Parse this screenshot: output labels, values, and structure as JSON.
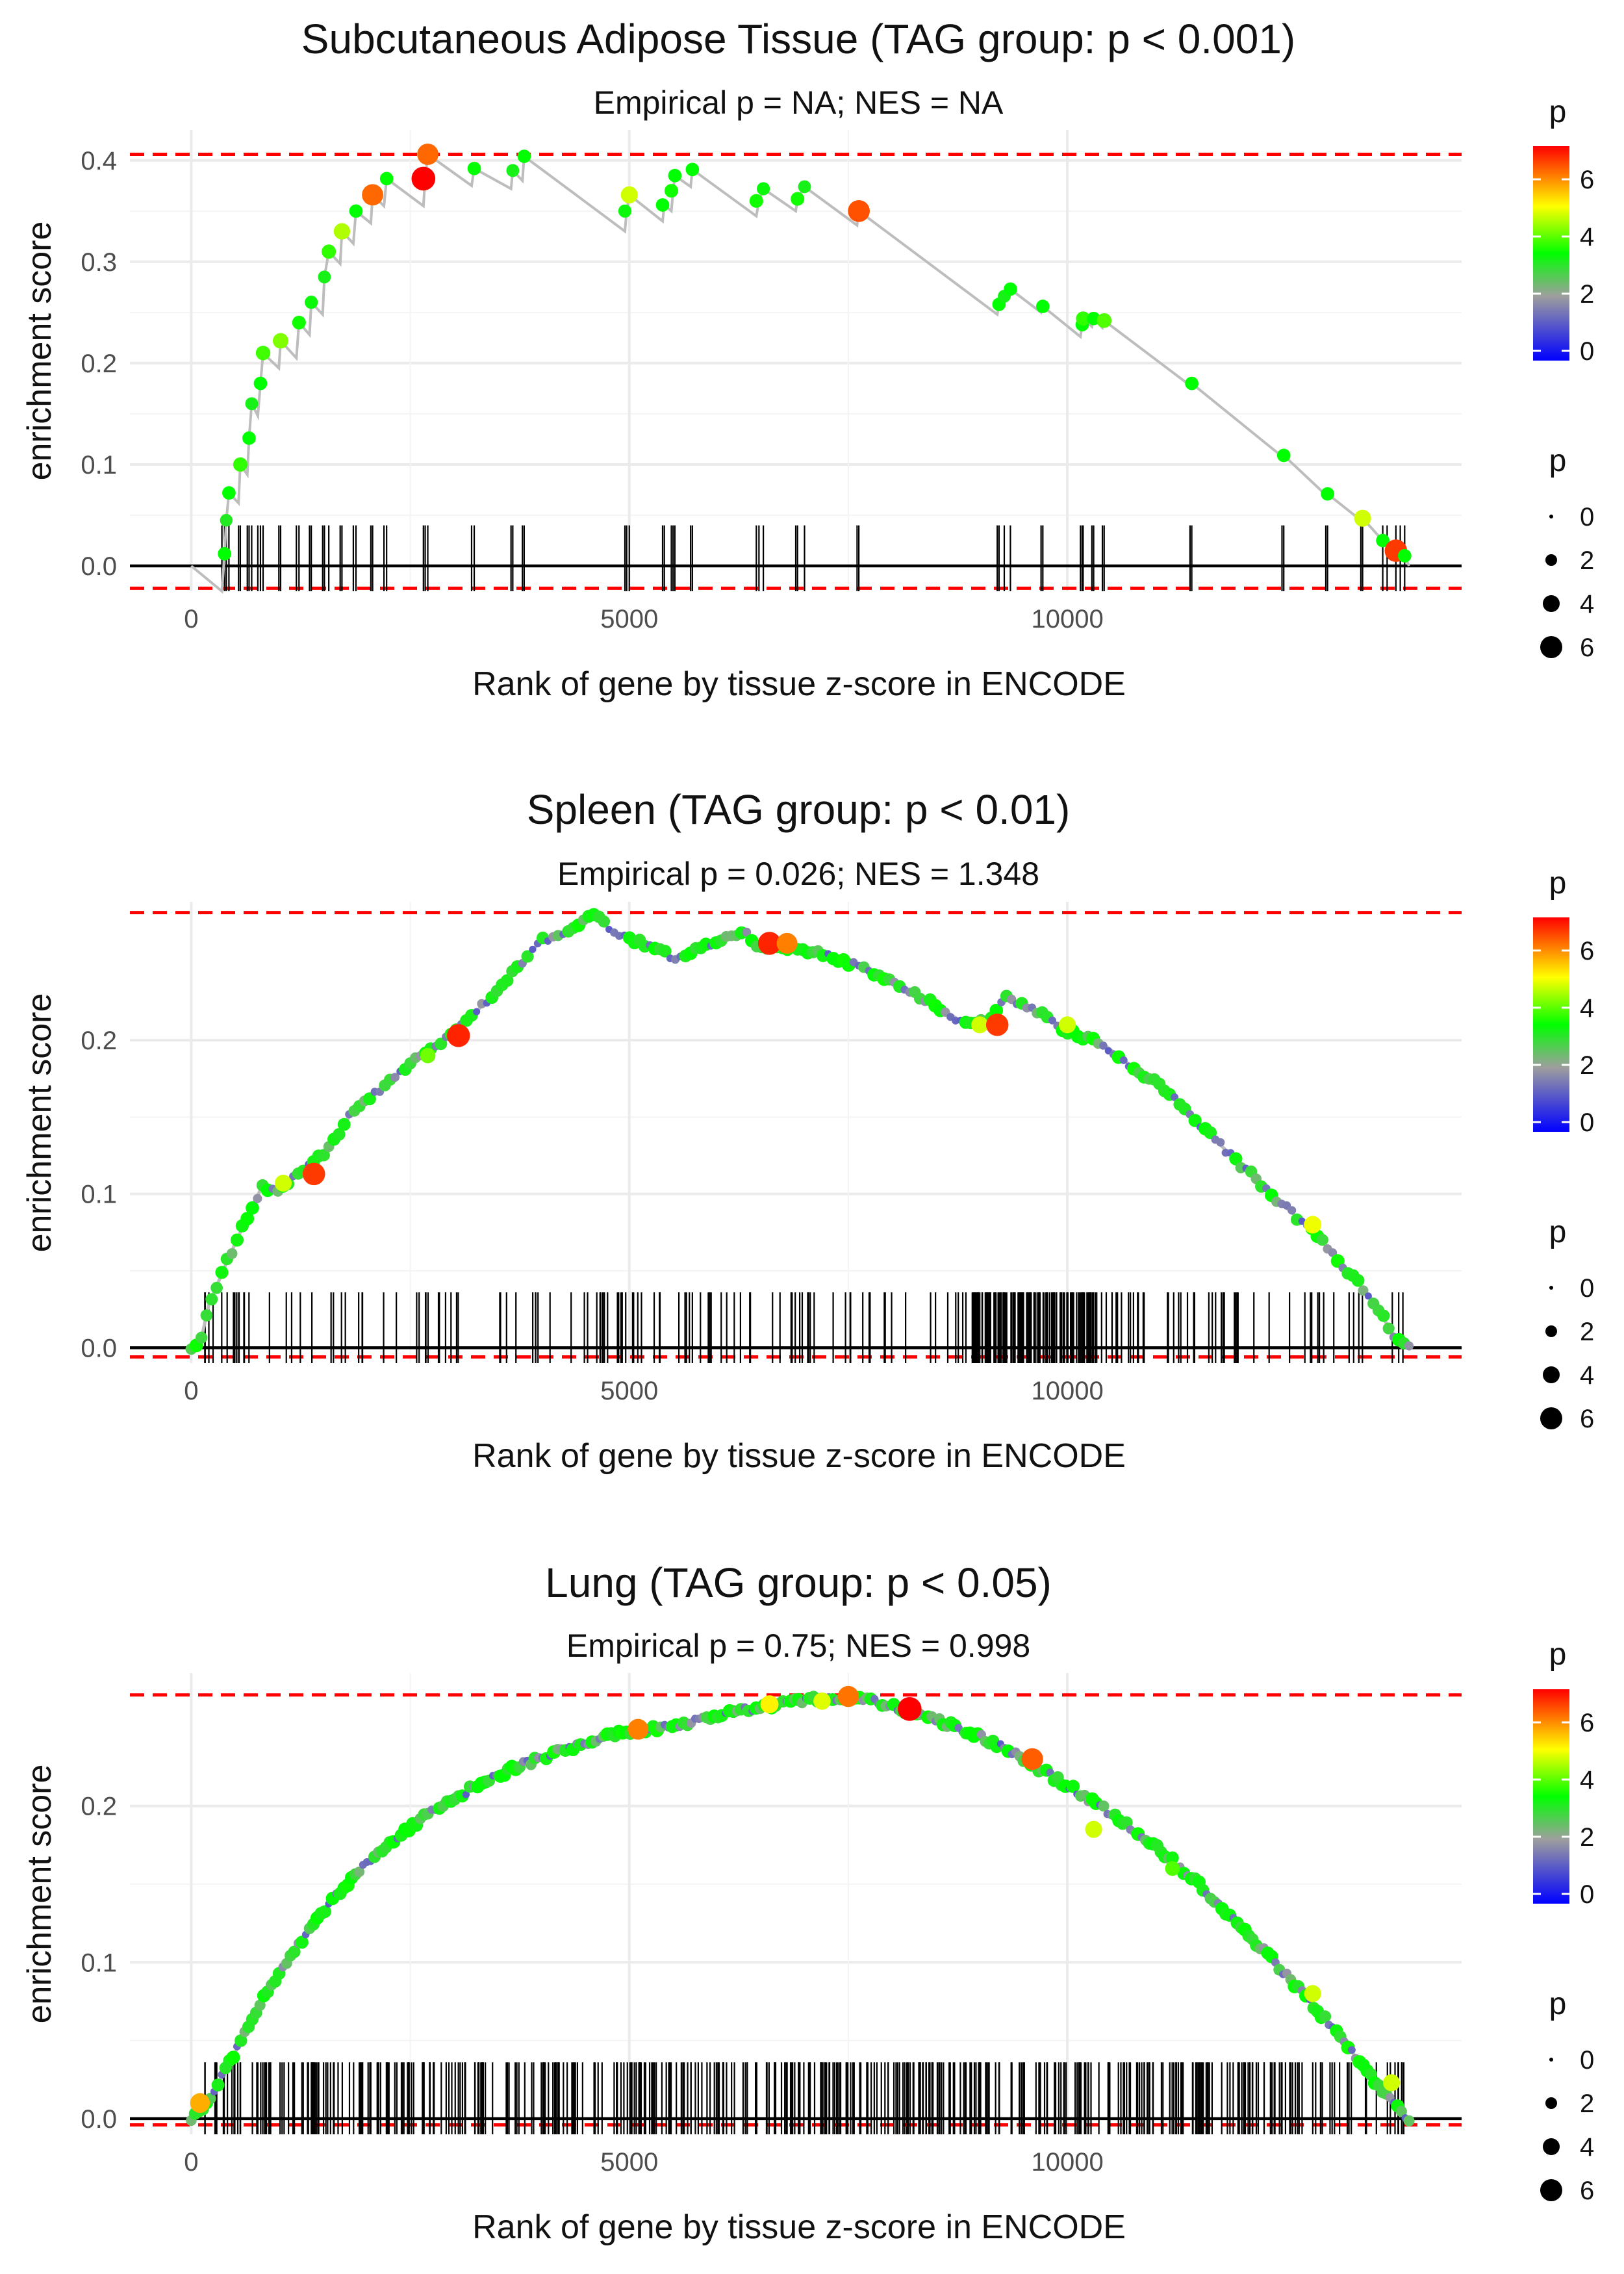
{
  "xlabel": "Rank of gene by tissue z-score in ENCODE",
  "ylabel": "enrichment score",
  "legend": {
    "color_title": "p",
    "color_ticks": [
      "0",
      "2",
      "4",
      "6"
    ],
    "size_title": "p",
    "size_labels": [
      "0",
      "2",
      "4",
      "6"
    ],
    "colors": [
      "#0000ff",
      "#9e9e9e",
      "#00ff00",
      "#ffff00",
      "#ff0000"
    ]
  },
  "chart_data": [
    {
      "type": "line",
      "title": "Subcutaneous Adipose Tissue (TAG group: p < 0.001)",
      "subtitle": "Empirical p = NA; NES = NA",
      "xlabel": "Rank of gene by tissue z-score in ENCODE",
      "ylabel": "enrichment score",
      "xlim": [
        -700,
        14500
      ],
      "ylim": [
        -0.025,
        0.43
      ],
      "xticks": [
        0,
        5000,
        10000
      ],
      "yticks": [
        0.0,
        0.1,
        0.2,
        0.3,
        0.4
      ],
      "ytick_labels": [
        "0.0",
        "0.1",
        "0.2",
        "0.3",
        "0.4"
      ],
      "max_es": 0.406,
      "min_es": -0.022,
      "trace": [
        [
          0,
          0
        ],
        [
          350,
          -0.025
        ],
        [
          380,
          0.012
        ],
        [
          400,
          0.045
        ],
        [
          430,
          0.072
        ],
        [
          540,
          0.062
        ],
        [
          560,
          0.1
        ],
        [
          640,
          0.09
        ],
        [
          660,
          0.126
        ],
        [
          690,
          0.16
        ],
        [
          760,
          0.148
        ],
        [
          790,
          0.18
        ],
        [
          820,
          0.21
        ],
        [
          1000,
          0.195
        ],
        [
          1020,
          0.222
        ],
        [
          1200,
          0.205
        ],
        [
          1230,
          0.24
        ],
        [
          1350,
          0.228
        ],
        [
          1370,
          0.26
        ],
        [
          1500,
          0.248
        ],
        [
          1520,
          0.285
        ],
        [
          1570,
          0.31
        ],
        [
          1700,
          0.298
        ],
        [
          1720,
          0.33
        ],
        [
          1850,
          0.318
        ],
        [
          1880,
          0.35
        ],
        [
          2050,
          0.338
        ],
        [
          2070,
          0.366
        ],
        [
          2200,
          0.355
        ],
        [
          2230,
          0.382
        ],
        [
          2650,
          0.355
        ],
        [
          2670,
          0.382
        ],
        [
          2700,
          0.406
        ],
        [
          3200,
          0.375
        ],
        [
          3230,
          0.392
        ],
        [
          3650,
          0.372
        ],
        [
          3670,
          0.39
        ],
        [
          3780,
          0.38
        ],
        [
          3800,
          0.404
        ],
        [
          4950,
          0.33
        ],
        [
          4970,
          0.35
        ],
        [
          5000,
          0.366
        ],
        [
          5380,
          0.34
        ],
        [
          5400,
          0.356
        ],
        [
          5480,
          0.35
        ],
        [
          5500,
          0.37
        ],
        [
          5520,
          0.385
        ],
        [
          5700,
          0.374
        ],
        [
          5720,
          0.391
        ],
        [
          6450,
          0.345
        ],
        [
          6480,
          0.36
        ],
        [
          6530,
          0.372
        ],
        [
          6900,
          0.35
        ],
        [
          6920,
          0.362
        ],
        [
          7000,
          0.374
        ],
        [
          7600,
          0.336
        ],
        [
          7620,
          0.35
        ],
        [
          9200,
          0.248
        ],
        [
          9220,
          0.258
        ],
        [
          9280,
          0.266
        ],
        [
          9350,
          0.273
        ],
        [
          9700,
          0.25
        ],
        [
          9720,
          0.256
        ],
        [
          10150,
          0.226
        ],
        [
          10170,
          0.238
        ],
        [
          10180,
          0.244
        ],
        [
          10280,
          0.236
        ],
        [
          10300,
          0.244
        ],
        [
          10400,
          0.235
        ],
        [
          10420,
          0.242
        ],
        [
          11400,
          0.178
        ],
        [
          11420,
          0.18
        ],
        [
          12450,
          0.108
        ],
        [
          12470,
          0.109
        ],
        [
          12950,
          0.07
        ],
        [
          12970,
          0.071
        ],
        [
          13350,
          0.045
        ],
        [
          13370,
          0.047
        ],
        [
          13600,
          0.025
        ],
        [
          13650,
          0.022
        ],
        [
          13750,
          0.015
        ],
        [
          13800,
          0.012
        ],
        [
          13850,
          0.01
        ],
        [
          13900,
          0.0
        ]
      ],
      "points": [
        [
          380,
          0.012,
          3.5
        ],
        [
          400,
          0.045,
          3.2
        ],
        [
          430,
          0.072,
          3.5
        ],
        [
          560,
          0.1,
          3.8
        ],
        [
          660,
          0.126,
          3.5
        ],
        [
          690,
          0.16,
          3.3
        ],
        [
          790,
          0.18,
          3.5
        ],
        [
          820,
          0.21,
          3.9
        ],
        [
          1020,
          0.222,
          4.3
        ],
        [
          1230,
          0.24,
          3.6
        ],
        [
          1370,
          0.26,
          3.4
        ],
        [
          1520,
          0.285,
          3.3
        ],
        [
          1570,
          0.31,
          3.8
        ],
        [
          1720,
          0.33,
          4.6
        ],
        [
          1880,
          0.35,
          3.5
        ],
        [
          2070,
          0.366,
          6.4
        ],
        [
          2230,
          0.382,
          3.5
        ],
        [
          2650,
          0.382,
          7.3
        ],
        [
          2700,
          0.406,
          6.4
        ],
        [
          3230,
          0.392,
          3.5
        ],
        [
          3670,
          0.39,
          3.3
        ],
        [
          3800,
          0.404,
          3.5
        ],
        [
          4950,
          0.35,
          3.4
        ],
        [
          5000,
          0.366,
          4.8
        ],
        [
          5380,
          0.356,
          3.5
        ],
        [
          5480,
          0.37,
          3.6
        ],
        [
          5520,
          0.385,
          3.5
        ],
        [
          5720,
          0.391,
          3.5
        ],
        [
          6450,
          0.36,
          3.6
        ],
        [
          6530,
          0.372,
          3.4
        ],
        [
          6920,
          0.362,
          3.6
        ],
        [
          7000,
          0.374,
          3.3
        ],
        [
          7620,
          0.35,
          6.6
        ],
        [
          9220,
          0.258,
          3.5
        ],
        [
          9280,
          0.266,
          3.3
        ],
        [
          9350,
          0.273,
          3.5
        ],
        [
          9720,
          0.256,
          3.5
        ],
        [
          10170,
          0.238,
          3.5
        ],
        [
          10180,
          0.244,
          3.8
        ],
        [
          10300,
          0.244,
          3.5
        ],
        [
          10420,
          0.242,
          4.0
        ],
        [
          11420,
          0.18,
          3.5
        ],
        [
          12470,
          0.109,
          3.5
        ],
        [
          12970,
          0.071,
          3.5
        ],
        [
          13370,
          0.047,
          4.8
        ],
        [
          13600,
          0.025,
          3.5
        ],
        [
          13750,
          0.015,
          6.8
        ],
        [
          13850,
          0.01,
          3.5
        ]
      ],
      "hits": [
        350,
        380,
        400,
        430,
        540,
        560,
        640,
        660,
        690,
        760,
        790,
        820,
        1000,
        1020,
        1200,
        1230,
        1350,
        1370,
        1500,
        1520,
        1570,
        1700,
        1720,
        1850,
        1880,
        2050,
        2070,
        2200,
        2230,
        2650,
        2670,
        2700,
        3200,
        3230,
        3650,
        3670,
        3780,
        3800,
        4950,
        4970,
        5000,
        5380,
        5400,
        5480,
        5500,
        5520,
        5700,
        5720,
        6450,
        6480,
        6530,
        6900,
        6920,
        7000,
        7600,
        7620,
        9200,
        9220,
        9280,
        9350,
        9700,
        9720,
        10150,
        10170,
        10180,
        10280,
        10300,
        10400,
        10420,
        11400,
        11420,
        12450,
        12470,
        12950,
        12970,
        13350,
        13370,
        13600,
        13650,
        13750,
        13800,
        13850
      ]
    },
    {
      "type": "line",
      "title": "Spleen (TAG group: p < 0.01)",
      "subtitle": "Empirical p = 0.026; NES = 1.348",
      "xlabel": "Rank of gene by tissue z-score in ENCODE",
      "ylabel": "enrichment score",
      "xlim": [
        -700,
        14500
      ],
      "ylim": [
        -0.01,
        0.29
      ],
      "xticks": [
        0,
        5000,
        10000
      ],
      "yticks": [
        0.0,
        0.1,
        0.2
      ],
      "ytick_labels": [
        "0.0",
        "0.1",
        "0.2"
      ],
      "max_es": 0.283,
      "min_es": -0.006,
      "dense_n": 240,
      "curve": [
        [
          0,
          0
        ],
        [
          100,
          0.002
        ],
        [
          200,
          0.028
        ],
        [
          400,
          0.055
        ],
        [
          600,
          0.08
        ],
        [
          800,
          0.104
        ],
        [
          1000,
          0.103
        ],
        [
          1200,
          0.112
        ],
        [
          1500,
          0.125
        ],
        [
          1800,
          0.15
        ],
        [
          2000,
          0.16
        ],
        [
          2300,
          0.175
        ],
        [
          2600,
          0.19
        ],
        [
          2900,
          0.2
        ],
        [
          3200,
          0.215
        ],
        [
          3600,
          0.24
        ],
        [
          4000,
          0.265
        ],
        [
          4300,
          0.27
        ],
        [
          4600,
          0.283
        ],
        [
          4800,
          0.27
        ],
        [
          5200,
          0.262
        ],
        [
          5500,
          0.254
        ],
        [
          5700,
          0.257
        ],
        [
          6000,
          0.264
        ],
        [
          6300,
          0.272
        ],
        [
          6500,
          0.26
        ],
        [
          6800,
          0.26
        ],
        [
          7200,
          0.256
        ],
        [
          7600,
          0.248
        ],
        [
          8000,
          0.238
        ],
        [
          8400,
          0.226
        ],
        [
          8800,
          0.212
        ],
        [
          9100,
          0.212
        ],
        [
          9300,
          0.228
        ],
        [
          9700,
          0.218
        ],
        [
          10000,
          0.206
        ],
        [
          10400,
          0.198
        ],
        [
          10800,
          0.18
        ],
        [
          11200,
          0.165
        ],
        [
          11600,
          0.14
        ],
        [
          12000,
          0.118
        ],
        [
          12400,
          0.096
        ],
        [
          12800,
          0.076
        ],
        [
          13200,
          0.05
        ],
        [
          13500,
          0.03
        ],
        [
          13700,
          0.01
        ],
        [
          13900,
          0.0
        ]
      ],
      "big_points": [
        [
          1050,
          0.107,
          4.8
        ],
        [
          1400,
          0.113,
          6.8
        ],
        [
          2700,
          0.19,
          4.2
        ],
        [
          3050,
          0.203,
          7.0
        ],
        [
          6600,
          0.263,
          7.0
        ],
        [
          6800,
          0.263,
          6.2
        ],
        [
          9000,
          0.21,
          4.8
        ],
        [
          9200,
          0.21,
          6.8
        ],
        [
          10000,
          0.21,
          4.8
        ],
        [
          12800,
          0.08,
          5.0
        ]
      ],
      "hit_start": 130,
      "hit_end": 13850
    },
    {
      "type": "line",
      "title": "Lung (TAG group: p < 0.05)",
      "subtitle": "Empirical p = 0.75; NES = 0.998",
      "xlabel": "Rank of gene by tissue z-score in ENCODE",
      "ylabel": "enrichment score",
      "xlim": [
        -700,
        14500
      ],
      "ylim": [
        -0.01,
        0.285
      ],
      "xticks": [
        0,
        5000,
        10000
      ],
      "yticks": [
        0.0,
        0.1,
        0.2
      ],
      "ytick_labels": [
        "0.0",
        "0.1",
        "0.2"
      ],
      "max_es": 0.271,
      "min_es": -0.004,
      "dense_n": 320,
      "curve": [
        [
          0,
          0
        ],
        [
          200,
          0.012
        ],
        [
          500,
          0.042
        ],
        [
          800,
          0.075
        ],
        [
          1200,
          0.11
        ],
        [
          1600,
          0.14
        ],
        [
          2000,
          0.163
        ],
        [
          2500,
          0.187
        ],
        [
          3000,
          0.205
        ],
        [
          3500,
          0.22
        ],
        [
          4000,
          0.231
        ],
        [
          4500,
          0.24
        ],
        [
          5000,
          0.248
        ],
        [
          5500,
          0.251
        ],
        [
          6000,
          0.258
        ],
        [
          6500,
          0.263
        ],
        [
          7000,
          0.268
        ],
        [
          7500,
          0.27
        ],
        [
          8000,
          0.264
        ],
        [
          8500,
          0.255
        ],
        [
          9000,
          0.245
        ],
        [
          9500,
          0.23
        ],
        [
          10000,
          0.213
        ],
        [
          10500,
          0.195
        ],
        [
          11000,
          0.175
        ],
        [
          11500,
          0.15
        ],
        [
          12000,
          0.122
        ],
        [
          12500,
          0.092
        ],
        [
          13000,
          0.06
        ],
        [
          13500,
          0.025
        ],
        [
          13750,
          0.008
        ],
        [
          13900,
          0.0
        ]
      ],
      "big_points": [
        [
          100,
          0.01,
          5.8
        ],
        [
          5100,
          0.249,
          6.2
        ],
        [
          6600,
          0.265,
          5.2
        ],
        [
          7200,
          0.267,
          4.9
        ],
        [
          7500,
          0.27,
          6.3
        ],
        [
          8200,
          0.262,
          7.3
        ],
        [
          9600,
          0.23,
          6.5
        ],
        [
          10300,
          0.185,
          4.8
        ],
        [
          11200,
          0.16,
          4.0
        ],
        [
          12800,
          0.08,
          4.8
        ],
        [
          13700,
          0.023,
          4.8
        ]
      ],
      "hit_start": 100,
      "hit_end": 13850
    }
  ]
}
